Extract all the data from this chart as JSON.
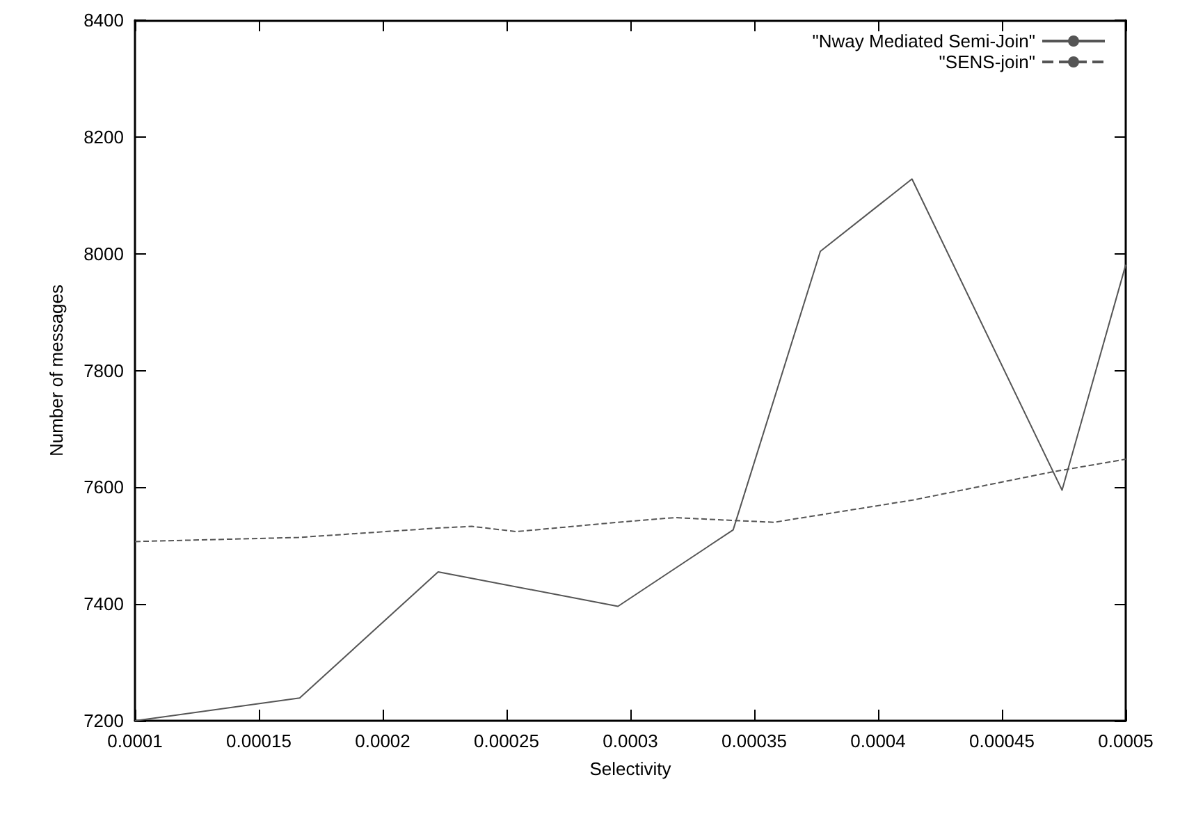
{
  "chart_data": {
    "type": "line",
    "xlabel": "Selectivity",
    "ylabel": "Number of messages",
    "xlim": [
      0.0001,
      0.0005
    ],
    "xticks": [
      0.0001,
      0.00015,
      0.0002,
      0.00025,
      0.0003,
      0.00035,
      0.0004,
      0.00045,
      0.0005
    ],
    "ylim": [
      7200,
      8400
    ],
    "yticks": [
      7200,
      7400,
      7600,
      7800,
      8000,
      8200,
      8400
    ],
    "grid": false,
    "legend": "top right",
    "marker": "none",
    "series": [
      {
        "name": "\"Nway Mediated Semi-Join\"",
        "color": "#555555",
        "line_style": "solid",
        "x": [
          0.0001,
          0.0001665,
          0.0002224,
          0.000295,
          0.0003415,
          0.0003767,
          0.0004137,
          0.0004743,
          0.0005
        ],
        "values": [
          7200,
          7239,
          7455,
          7396,
          7527,
          8004,
          8128,
          7595,
          7981
        ]
      },
      {
        "name": "\"SENS-join\"",
        "color": "#555555",
        "line_style": "dashed",
        "x": [
          0.0001,
          0.000166,
          0.000222,
          0.000236,
          0.000254,
          0.000295,
          0.000318,
          0.000342,
          0.000358,
          0.000414,
          0.00047,
          0.0005
        ],
        "values": [
          7507,
          7514,
          7530,
          7533,
          7524,
          7540,
          7548,
          7543,
          7540,
          7578,
          7626,
          7648
        ]
      }
    ]
  }
}
